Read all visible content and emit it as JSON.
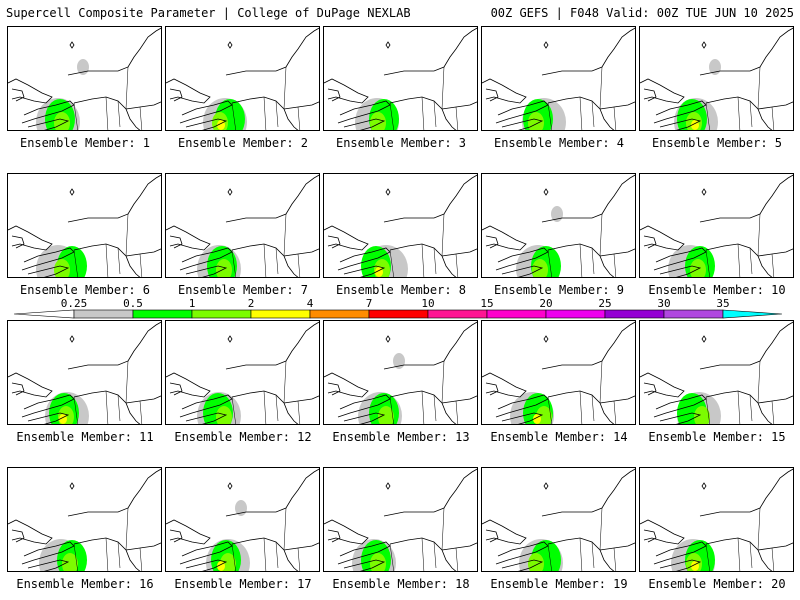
{
  "header": {
    "title_left": "Supercell Composite Parameter | College of DuPage NEXLAB",
    "title_right": "00Z GEFS | F048 Valid: 00Z TUE JUN 10 2025"
  },
  "members": [
    {
      "label": "Ensemble Member: 1"
    },
    {
      "label": "Ensemble Member: 2"
    },
    {
      "label": "Ensemble Member: 3"
    },
    {
      "label": "Ensemble Member: 4"
    },
    {
      "label": "Ensemble Member: 5"
    },
    {
      "label": "Ensemble Member: 6"
    },
    {
      "label": "Ensemble Member: 7"
    },
    {
      "label": "Ensemble Member: 8"
    },
    {
      "label": "Ensemble Member: 9"
    },
    {
      "label": "Ensemble Member: 10"
    },
    {
      "label": "Ensemble Member: 11"
    },
    {
      "label": "Ensemble Member: 12"
    },
    {
      "label": "Ensemble Member: 13"
    },
    {
      "label": "Ensemble Member: 14"
    },
    {
      "label": "Ensemble Member: 15"
    },
    {
      "label": "Ensemble Member: 16"
    },
    {
      "label": "Ensemble Member: 17"
    },
    {
      "label": "Ensemble Member: 18"
    },
    {
      "label": "Ensemble Member: 19"
    },
    {
      "label": "Ensemble Member: 20"
    }
  ],
  "colorbar": {
    "ticks": [
      "0.25",
      "0.5",
      "1",
      "2",
      "4",
      "7",
      "10",
      "15",
      "20",
      "25",
      "30",
      "35"
    ],
    "colors": [
      "#c8c8c8",
      "#00ff00",
      "#7cfc00",
      "#ffff00",
      "#ff8c00",
      "#ff0000",
      "#ff1493",
      "#ff00cc",
      "#ee00ee",
      "#9400d3",
      "#b048e0",
      "#00ffff"
    ]
  },
  "fill_colors": {
    "gray": "#c8c8c8",
    "green": "#00ff00",
    "lime": "#7cfc00",
    "yellow": "#ffff00"
  }
}
